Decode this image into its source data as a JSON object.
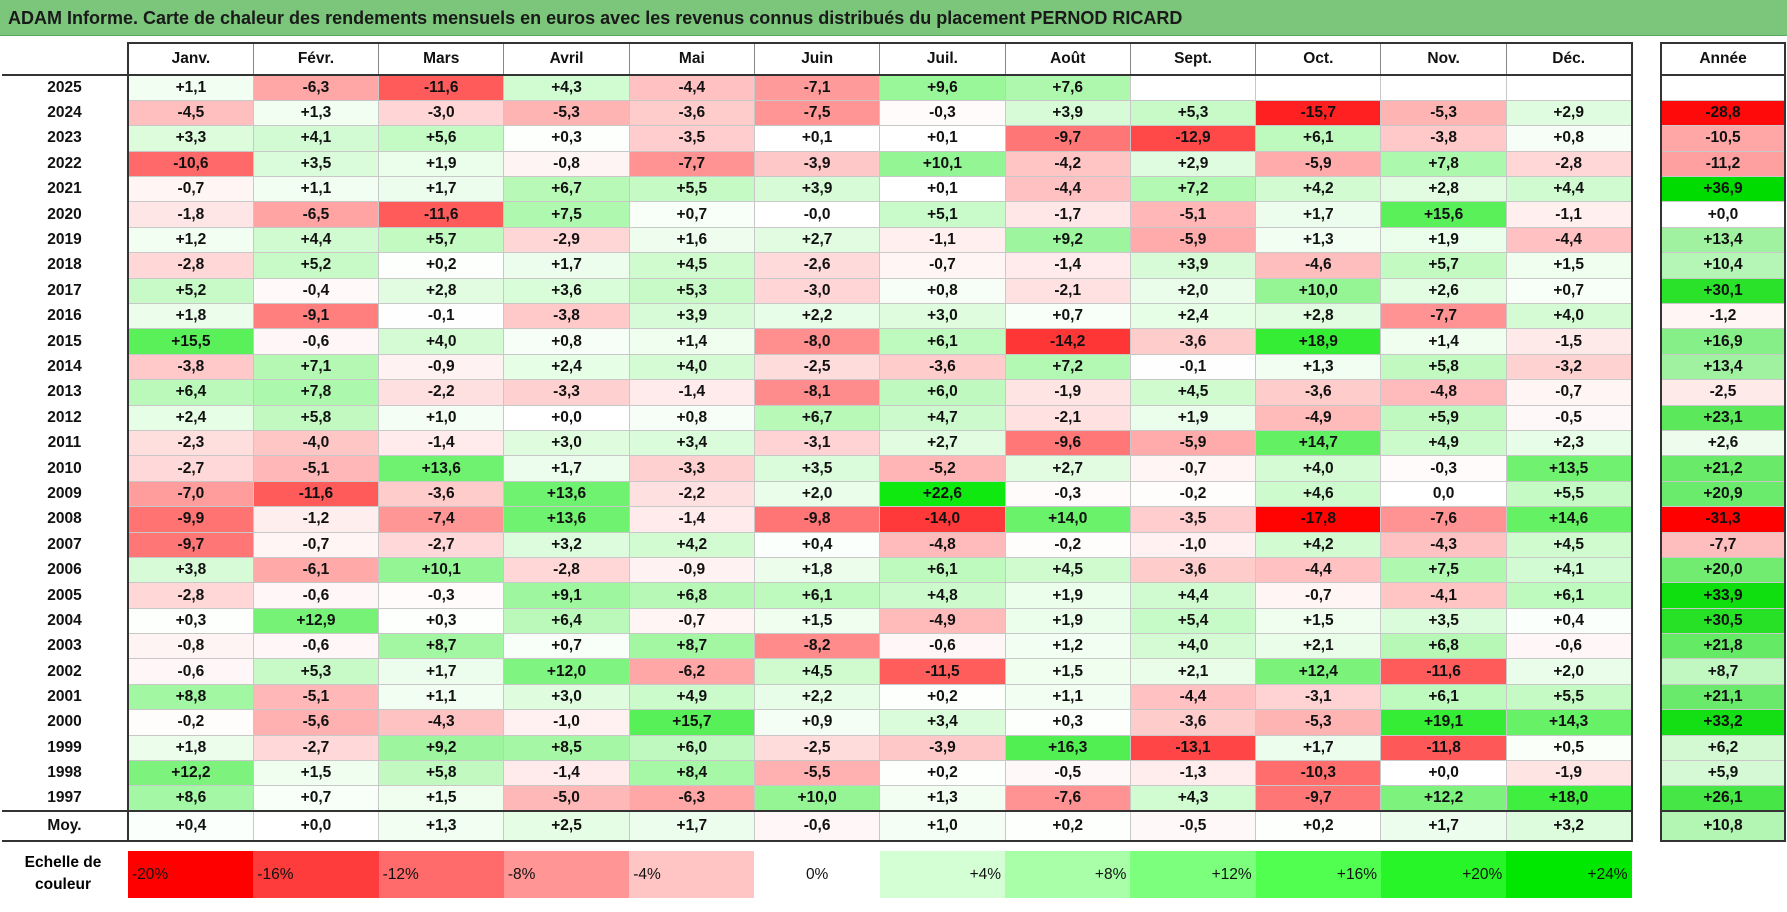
{
  "title": "ADAM Informe. Carte de chaleur des rendements mensuels en euros avec les revenus connus distribués du placement PERNOD RICARD",
  "chart_data": {
    "type": "heatmap",
    "columns": [
      "Janv.",
      "Févr.",
      "Mars",
      "Avril",
      "Mai",
      "Juin",
      "Juil.",
      "Août",
      "Sept.",
      "Oct.",
      "Nov.",
      "Déc."
    ],
    "year_column": "Année",
    "rows": [
      {
        "year": "2025",
        "months": [
          "+1,1",
          "-6,3",
          "-11,6",
          "+4,3",
          "-4,4",
          "-7,1",
          "+9,6",
          "+7,6",
          "",
          "",
          "",
          ""
        ],
        "annual": ""
      },
      {
        "year": "2024",
        "months": [
          "-4,5",
          "+1,3",
          "-3,0",
          "-5,3",
          "-3,6",
          "-7,5",
          "-0,3",
          "+3,9",
          "+5,3",
          "-15,7",
          "-5,3",
          "+2,9"
        ],
        "annual": "-28,8"
      },
      {
        "year": "2023",
        "months": [
          "+3,3",
          "+4,1",
          "+5,6",
          "+0,3",
          "-3,5",
          "+0,1",
          "+0,1",
          "-9,7",
          "-12,9",
          "+6,1",
          "-3,8",
          "+0,8"
        ],
        "annual": "-10,5"
      },
      {
        "year": "2022",
        "months": [
          "-10,6",
          "+3,5",
          "+1,9",
          "-0,8",
          "-7,7",
          "-3,9",
          "+10,1",
          "-4,2",
          "+2,9",
          "-5,9",
          "+7,8",
          "-2,8"
        ],
        "annual": "-11,2"
      },
      {
        "year": "2021",
        "months": [
          "-0,7",
          "+1,1",
          "+1,7",
          "+6,7",
          "+5,5",
          "+3,9",
          "+0,1",
          "-4,4",
          "+7,2",
          "+4,2",
          "+2,8",
          "+4,4"
        ],
        "annual": "+36,9"
      },
      {
        "year": "2020",
        "months": [
          "-1,8",
          "-6,5",
          "-11,6",
          "+7,5",
          "+0,7",
          "-0,0",
          "+5,1",
          "-1,7",
          "-5,1",
          "+1,7",
          "+15,6",
          "-1,1"
        ],
        "annual": "+0,0"
      },
      {
        "year": "2019",
        "months": [
          "+1,2",
          "+4,4",
          "+5,7",
          "-2,9",
          "+1,6",
          "+2,7",
          "-1,1",
          "+9,2",
          "-5,9",
          "+1,3",
          "+1,9",
          "-4,4"
        ],
        "annual": "+13,4"
      },
      {
        "year": "2018",
        "months": [
          "-2,8",
          "+5,2",
          "+0,2",
          "+1,7",
          "+4,5",
          "-2,6",
          "-0,7",
          "-1,4",
          "+3,9",
          "-4,6",
          "+5,7",
          "+1,5"
        ],
        "annual": "+10,4"
      },
      {
        "year": "2017",
        "months": [
          "+5,2",
          "-0,4",
          "+2,8",
          "+3,6",
          "+5,3",
          "-3,0",
          "+0,8",
          "-2,1",
          "+2,0",
          "+10,0",
          "+2,6",
          "+0,7"
        ],
        "annual": "+30,1"
      },
      {
        "year": "2016",
        "months": [
          "+1,8",
          "-9,1",
          "-0,1",
          "-3,8",
          "+3,9",
          "+2,2",
          "+3,0",
          "+0,7",
          "+2,4",
          "+2,8",
          "-7,7",
          "+4,0"
        ],
        "annual": "-1,2"
      },
      {
        "year": "2015",
        "months": [
          "+15,5",
          "-0,6",
          "+4,0",
          "+0,8",
          "+1,4",
          "-8,0",
          "+6,1",
          "-14,2",
          "-3,6",
          "+18,9",
          "+1,4",
          "-1,5"
        ],
        "annual": "+16,9"
      },
      {
        "year": "2014",
        "months": [
          "-3,8",
          "+7,1",
          "-0,9",
          "+2,4",
          "+4,0",
          "-2,5",
          "-3,6",
          "+7,2",
          "-0,1",
          "+1,3",
          "+5,8",
          "-3,2"
        ],
        "annual": "+13,4"
      },
      {
        "year": "2013",
        "months": [
          "+6,4",
          "+7,8",
          "-2,2",
          "-3,3",
          "-1,4",
          "-8,1",
          "+6,0",
          "-1,9",
          "+4,5",
          "-3,6",
          "-4,8",
          "-0,7"
        ],
        "annual": "-2,5"
      },
      {
        "year": "2012",
        "months": [
          "+2,4",
          "+5,8",
          "+1,0",
          "+0,0",
          "+0,8",
          "+6,7",
          "+4,7",
          "-2,1",
          "+1,9",
          "-4,9",
          "+5,9",
          "-0,5"
        ],
        "annual": "+23,1"
      },
      {
        "year": "2011",
        "months": [
          "-2,3",
          "-4,0",
          "-1,4",
          "+3,0",
          "+3,4",
          "-3,1",
          "+2,7",
          "-9,6",
          "-5,9",
          "+14,7",
          "+4,9",
          "+2,3"
        ],
        "annual": "+2,6"
      },
      {
        "year": "2010",
        "months": [
          "-2,7",
          "-5,1",
          "+13,6",
          "+1,7",
          "-3,3",
          "+3,5",
          "-5,2",
          "+2,7",
          "-0,7",
          "+4,0",
          "-0,3",
          "+13,5"
        ],
        "annual": "+21,2"
      },
      {
        "year": "2009",
        "months": [
          "-7,0",
          "-11,6",
          "-3,6",
          "+13,6",
          "-2,2",
          "+2,0",
          "+22,6",
          "-0,3",
          "-0,2",
          "+4,6",
          "0,0",
          "+5,5"
        ],
        "annual": "+20,9"
      },
      {
        "year": "2008",
        "months": [
          "-9,9",
          "-1,2",
          "-7,4",
          "+13,6",
          "-1,4",
          "-9,8",
          "-14,0",
          "+14,0",
          "-3,5",
          "-17,8",
          "-7,6",
          "+14,6"
        ],
        "annual": "-31,3"
      },
      {
        "year": "2007",
        "months": [
          "-9,7",
          "-0,7",
          "-2,7",
          "+3,2",
          "+4,2",
          "+0,4",
          "-4,8",
          "-0,2",
          "-1,0",
          "+4,2",
          "-4,3",
          "+4,5"
        ],
        "annual": "-7,7"
      },
      {
        "year": "2006",
        "months": [
          "+3,8",
          "-6,1",
          "+10,1",
          "-2,8",
          "-0,9",
          "+1,8",
          "+6,1",
          "+4,5",
          "-3,6",
          "-4,4",
          "+7,5",
          "+4,1"
        ],
        "annual": "+20,0"
      },
      {
        "year": "2005",
        "months": [
          "-2,8",
          "-0,6",
          "-0,3",
          "+9,1",
          "+6,8",
          "+6,1",
          "+4,8",
          "+1,9",
          "+4,4",
          "-0,7",
          "-4,1",
          "+6,1"
        ],
        "annual": "+33,9"
      },
      {
        "year": "2004",
        "months": [
          "+0,3",
          "+12,9",
          "+0,3",
          "+6,4",
          "-0,7",
          "+1,5",
          "-4,9",
          "+1,9",
          "+5,4",
          "+1,5",
          "+3,5",
          "+0,4"
        ],
        "annual": "+30,5"
      },
      {
        "year": "2003",
        "months": [
          "-0,8",
          "-0,6",
          "+8,7",
          "+0,7",
          "+8,7",
          "-8,2",
          "-0,6",
          "+1,2",
          "+4,0",
          "+2,1",
          "+6,8",
          "-0,6"
        ],
        "annual": "+21,8"
      },
      {
        "year": "2002",
        "months": [
          "-0,6",
          "+5,3",
          "+1,7",
          "+12,0",
          "-6,2",
          "+4,5",
          "-11,5",
          "+1,5",
          "+2,1",
          "+12,4",
          "-11,6",
          "+2,0"
        ],
        "annual": "+8,7"
      },
      {
        "year": "2001",
        "months": [
          "+8,8",
          "-5,1",
          "+1,1",
          "+3,0",
          "+4,9",
          "+2,2",
          "+0,2",
          "+1,1",
          "-4,4",
          "-3,1",
          "+6,1",
          "+5,5"
        ],
        "annual": "+21,1"
      },
      {
        "year": "2000",
        "months": [
          "-0,2",
          "-5,6",
          "-4,3",
          "-1,0",
          "+15,7",
          "+0,9",
          "+3,4",
          "+0,3",
          "-3,6",
          "-5,3",
          "+19,1",
          "+14,3"
        ],
        "annual": "+33,2"
      },
      {
        "year": "1999",
        "months": [
          "+1,8",
          "-2,7",
          "+9,2",
          "+8,5",
          "+6,0",
          "-2,5",
          "-3,9",
          "+16,3",
          "-13,1",
          "+1,7",
          "-11,8",
          "+0,5"
        ],
        "annual": "+6,2"
      },
      {
        "year": "1998",
        "months": [
          "+12,2",
          "+1,5",
          "+5,8",
          "-1,4",
          "+8,4",
          "-5,5",
          "+0,2",
          "-0,5",
          "-1,3",
          "-10,3",
          "+0,0",
          "-1,9"
        ],
        "annual": "+5,9"
      },
      {
        "year": "1997",
        "months": [
          "+8,6",
          "+0,7",
          "+1,5",
          "-5,0",
          "-6,3",
          "+10,0",
          "+1,3",
          "-7,6",
          "+4,3",
          "-9,7",
          "+12,2",
          "+18,0"
        ],
        "annual": "+26,1"
      }
    ],
    "average": {
      "label": "Moy.",
      "months": [
        "+0,4",
        "+0,0",
        "+1,3",
        "+2,5",
        "+1,7",
        "-0,6",
        "+1,0",
        "+0,2",
        "-0,5",
        "+0,2",
        "+1,7",
        "+3,2"
      ],
      "annual": "+10,8"
    },
    "legend": {
      "label": "Echelle de couleur",
      "items": [
        {
          "text": "-20%",
          "color": "#ff0000",
          "align": "left"
        },
        {
          "text": "-16%",
          "color": "#ff3c3c",
          "align": "left"
        },
        {
          "text": "-12%",
          "color": "#ff6a6a",
          "align": "left"
        },
        {
          "text": "-8%",
          "color": "#ff9595",
          "align": "left"
        },
        {
          "text": "-4%",
          "color": "#ffc4c4",
          "align": "left"
        },
        {
          "text": "0%",
          "color": "#ffffff",
          "align": "center"
        },
        {
          "text": "+4%",
          "color": "#d4ffd4",
          "align": "right"
        },
        {
          "text": "+8%",
          "color": "#a8ffa8",
          "align": "right"
        },
        {
          "text": "+12%",
          "color": "#7cff7c",
          "align": "right"
        },
        {
          "text": "+16%",
          "color": "#50ff50",
          "align": "right"
        },
        {
          "text": "+20%",
          "color": "#28f528",
          "align": "right"
        },
        {
          "text": "+24%",
          "color": "#00e800",
          "align": "right"
        }
      ]
    }
  }
}
